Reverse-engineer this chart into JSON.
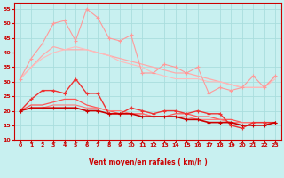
{
  "xlabel": "Vent moyen/en rafales ( km/h )",
  "xlim": [
    -0.5,
    23.5
  ],
  "ylim": [
    10,
    57
  ],
  "yticks": [
    10,
    15,
    20,
    25,
    30,
    35,
    40,
    45,
    50,
    55
  ],
  "xticks": [
    0,
    1,
    2,
    3,
    4,
    5,
    6,
    7,
    8,
    9,
    10,
    11,
    12,
    13,
    14,
    15,
    16,
    17,
    18,
    19,
    20,
    21,
    22,
    23
  ],
  "background_color": "#c8f0f0",
  "grid_color": "#aadddd",
  "lines": [
    {
      "x": [
        0,
        1,
        2,
        3,
        4,
        5,
        6,
        7,
        8,
        9,
        10,
        11,
        12,
        13,
        14,
        15,
        16,
        17,
        18,
        19,
        20,
        21,
        22,
        23
      ],
      "y": [
        31,
        38,
        43,
        50,
        51,
        44,
        55,
        52,
        45,
        44,
        46,
        33,
        33,
        36,
        35,
        33,
        35,
        26,
        28,
        27,
        28,
        32,
        28,
        32
      ],
      "color": "#ff9999",
      "linewidth": 0.8,
      "marker": "+",
      "markersize": 3
    },
    {
      "x": [
        0,
        1,
        2,
        3,
        4,
        5,
        6,
        7,
        8,
        9,
        10,
        11,
        12,
        13,
        14,
        15,
        16,
        17,
        18,
        19,
        20,
        21,
        22,
        23
      ],
      "y": [
        31,
        35,
        39,
        42,
        41,
        41,
        41,
        40,
        39,
        38,
        37,
        36,
        35,
        34,
        33,
        33,
        32,
        31,
        30,
        29,
        28,
        28,
        28,
        32
      ],
      "color": "#ffaaaa",
      "linewidth": 0.9,
      "marker": null,
      "markersize": 0
    },
    {
      "x": [
        0,
        1,
        2,
        3,
        4,
        5,
        6,
        7,
        8,
        9,
        10,
        11,
        12,
        13,
        14,
        15,
        16,
        17,
        18,
        19,
        20,
        21,
        22,
        23
      ],
      "y": [
        31,
        35,
        38,
        40,
        41,
        42,
        41,
        40,
        39,
        37,
        36,
        35,
        33,
        32,
        31,
        31,
        31,
        30,
        30,
        29,
        28,
        28,
        28,
        31
      ],
      "color": "#ffbbbb",
      "linewidth": 0.8,
      "marker": null,
      "markersize": 0
    },
    {
      "x": [
        0,
        1,
        2,
        3,
        4,
        5,
        6,
        7,
        8,
        9,
        10,
        11,
        12,
        13,
        14,
        15,
        16,
        17,
        18,
        19,
        20,
        21,
        22,
        23
      ],
      "y": [
        20,
        24,
        27,
        27,
        26,
        31,
        26,
        26,
        19,
        19,
        21,
        20,
        19,
        20,
        20,
        19,
        20,
        19,
        19,
        15,
        14,
        16,
        16,
        16
      ],
      "color": "#ee3333",
      "linewidth": 1.0,
      "marker": "+",
      "markersize": 3
    },
    {
      "x": [
        0,
        1,
        2,
        3,
        4,
        5,
        6,
        7,
        8,
        9,
        10,
        11,
        12,
        13,
        14,
        15,
        16,
        17,
        18,
        19,
        20,
        21,
        22,
        23
      ],
      "y": [
        20,
        22,
        22,
        23,
        24,
        24,
        22,
        21,
        20,
        19,
        19,
        19,
        18,
        18,
        19,
        19,
        18,
        18,
        17,
        17,
        16,
        16,
        16,
        16
      ],
      "color": "#ff5555",
      "linewidth": 0.9,
      "marker": null,
      "markersize": 0
    },
    {
      "x": [
        0,
        1,
        2,
        3,
        4,
        5,
        6,
        7,
        8,
        9,
        10,
        11,
        12,
        13,
        14,
        15,
        16,
        17,
        18,
        19,
        20,
        21,
        22,
        23
      ],
      "y": [
        20,
        21,
        21,
        22,
        22,
        22,
        21,
        21,
        20,
        20,
        19,
        19,
        18,
        18,
        18,
        18,
        17,
        17,
        17,
        16,
        16,
        16,
        16,
        16
      ],
      "color": "#ff7777",
      "linewidth": 0.8,
      "marker": null,
      "markersize": 0
    },
    {
      "x": [
        0,
        1,
        2,
        3,
        4,
        5,
        6,
        7,
        8,
        9,
        10,
        11,
        12,
        13,
        14,
        15,
        16,
        17,
        18,
        19,
        20,
        21,
        22,
        23
      ],
      "y": [
        20,
        21,
        21,
        21,
        21,
        21,
        20,
        20,
        19,
        19,
        19,
        18,
        18,
        18,
        18,
        17,
        17,
        16,
        16,
        16,
        15,
        15,
        15,
        16
      ],
      "color": "#cc0000",
      "linewidth": 1.2,
      "marker": "+",
      "markersize": 3
    }
  ],
  "tick_color": "#cc0000",
  "axis_label_color": "#cc0000",
  "spine_color": "#cc0000",
  "arrow_color": "#cc0000"
}
